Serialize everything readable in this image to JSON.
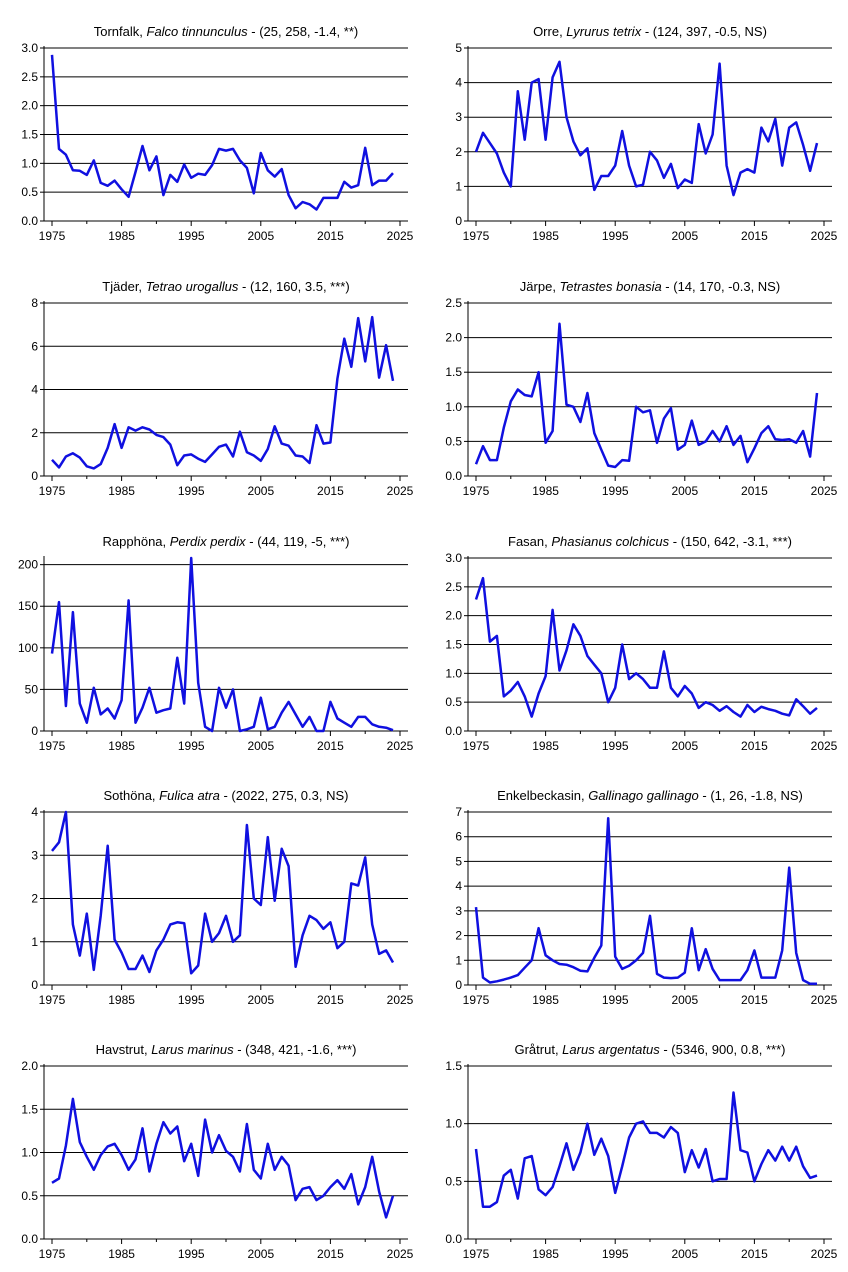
{
  "chart_data": [
    {
      "type": "line",
      "title": {
        "common": "Tornfalk",
        "latin": "Falco tinnunculus",
        "stats": " - (25, 258, -1.4, **)"
      },
      "xlim": [
        1975,
        2025
      ],
      "ylim": [
        0,
        3
      ],
      "yticks": [
        0.0,
        0.5,
        1.0,
        1.5,
        2.0,
        2.5,
        3.0
      ],
      "ydecimals": 1,
      "xticks": [
        1975,
        1985,
        1995,
        2005,
        2015,
        2025
      ],
      "color": "#1010e0",
      "x": [
        1975,
        1976,
        1977,
        1978,
        1979,
        1980,
        1981,
        1982,
        1983,
        1984,
        1985,
        1986,
        1987,
        1988,
        1989,
        1990,
        1991,
        1992,
        1993,
        1994,
        1995,
        1996,
        1997,
        1998,
        1999,
        2000,
        2001,
        2002,
        2003,
        2004,
        2005,
        2006,
        2007,
        2008,
        2009,
        2010,
        2011,
        2012,
        2013,
        2014,
        2015,
        2016,
        2017,
        2018,
        2019,
        2020,
        2021,
        2022,
        2023,
        2024
      ],
      "values": [
        2.88,
        1.25,
        1.15,
        0.88,
        0.87,
        0.8,
        1.05,
        0.66,
        0.61,
        0.7,
        0.55,
        0.42,
        0.85,
        1.3,
        0.88,
        1.12,
        0.45,
        0.8,
        0.68,
        0.98,
        0.75,
        0.82,
        0.8,
        0.97,
        1.25,
        1.22,
        1.25,
        1.05,
        0.92,
        0.48,
        1.18,
        0.88,
        0.77,
        0.9,
        0.45,
        0.22,
        0.33,
        0.29,
        0.2,
        0.4,
        0.4,
        0.4,
        0.68,
        0.58,
        0.62,
        1.27,
        0.62,
        0.7,
        0.7,
        0.83
      ]
    },
    {
      "type": "line",
      "title": {
        "common": "Orre",
        "latin": "Lyrurus tetrix",
        "stats": " - (124, 397, -0.5, NS)"
      },
      "xlim": [
        1975,
        2025
      ],
      "ylim": [
        0,
        5
      ],
      "yticks": [
        0,
        1,
        2,
        3,
        4,
        5
      ],
      "ydecimals": 0,
      "xticks": [
        1975,
        1985,
        1995,
        2005,
        2015,
        2025
      ],
      "color": "#1010e0",
      "x": [
        1975,
        1976,
        1977,
        1978,
        1979,
        1980,
        1981,
        1982,
        1983,
        1984,
        1985,
        1986,
        1987,
        1988,
        1989,
        1990,
        1991,
        1992,
        1993,
        1994,
        1995,
        1996,
        1997,
        1998,
        1999,
        2000,
        2001,
        2002,
        2003,
        2004,
        2005,
        2006,
        2007,
        2008,
        2009,
        2010,
        2011,
        2012,
        2013,
        2014,
        2015,
        2016,
        2017,
        2018,
        2019,
        2020,
        2021,
        2022,
        2023,
        2024
      ],
      "values": [
        2.0,
        2.55,
        2.25,
        1.95,
        1.4,
        1.0,
        3.75,
        2.35,
        4.0,
        4.1,
        2.35,
        4.15,
        4.6,
        3.0,
        2.3,
        1.9,
        2.1,
        0.9,
        1.3,
        1.3,
        1.6,
        2.6,
        1.6,
        1.0,
        1.05,
        2.0,
        1.75,
        1.25,
        1.65,
        0.95,
        1.2,
        1.1,
        2.8,
        1.95,
        2.5,
        4.55,
        1.6,
        0.75,
        1.4,
        1.5,
        1.4,
        2.7,
        2.3,
        2.95,
        1.6,
        2.7,
        2.85,
        2.2,
        1.45,
        2.25
      ]
    },
    {
      "type": "line",
      "title": {
        "common": "Tjäder",
        "latin": "Tetrao urogallus",
        "stats": " - (12, 160, 3.5, ***)"
      },
      "xlim": [
        1975,
        2025
      ],
      "ylim": [
        0,
        8
      ],
      "yticks": [
        0,
        2,
        4,
        6,
        8
      ],
      "ydecimals": 0,
      "xticks": [
        1975,
        1985,
        1995,
        2005,
        2015,
        2025
      ],
      "color": "#1010e0",
      "x": [
        1975,
        1976,
        1977,
        1978,
        1979,
        1980,
        1981,
        1982,
        1983,
        1984,
        1985,
        1986,
        1987,
        1988,
        1989,
        1990,
        1991,
        1992,
        1993,
        1994,
        1995,
        1996,
        1997,
        1998,
        1999,
        2000,
        2001,
        2002,
        2003,
        2004,
        2005,
        2006,
        2007,
        2008,
        2009,
        2010,
        2011,
        2012,
        2013,
        2014,
        2015,
        2016,
        2017,
        2018,
        2019,
        2020,
        2021,
        2022,
        2023,
        2024
      ],
      "values": [
        0.75,
        0.4,
        0.9,
        1.05,
        0.85,
        0.45,
        0.35,
        0.55,
        1.3,
        2.4,
        1.3,
        2.25,
        2.1,
        2.25,
        2.15,
        1.9,
        1.8,
        1.45,
        0.5,
        0.95,
        1.0,
        0.8,
        0.65,
        1.0,
        1.35,
        1.45,
        0.9,
        2.05,
        1.1,
        0.95,
        0.7,
        1.25,
        2.3,
        1.5,
        1.4,
        0.95,
        0.9,
        0.6,
        2.35,
        1.5,
        1.55,
        4.5,
        6.35,
        5.05,
        7.3,
        5.3,
        7.35,
        4.55,
        6.05,
        4.4
      ]
    },
    {
      "type": "line",
      "title": {
        "common": "Järpe",
        "latin": "Tetrastes bonasia",
        "stats": " - (14, 170, -0.3, NS)"
      },
      "xlim": [
        1975,
        2025
      ],
      "ylim": [
        0,
        2.5
      ],
      "yticks": [
        0.0,
        0.5,
        1.0,
        1.5,
        2.0,
        2.5
      ],
      "ydecimals": 1,
      "xticks": [
        1975,
        1985,
        1995,
        2005,
        2015,
        2025
      ],
      "color": "#1010e0",
      "x": [
        1975,
        1976,
        1977,
        1978,
        1979,
        1980,
        1981,
        1982,
        1983,
        1984,
        1985,
        1986,
        1987,
        1988,
        1989,
        1990,
        1991,
        1992,
        1993,
        1994,
        1995,
        1996,
        1997,
        1998,
        1999,
        2000,
        2001,
        2002,
        2003,
        2004,
        2005,
        2006,
        2007,
        2008,
        2009,
        2010,
        2011,
        2012,
        2013,
        2014,
        2015,
        2016,
        2017,
        2018,
        2019,
        2020,
        2021,
        2022,
        2023,
        2024
      ],
      "values": [
        0.17,
        0.43,
        0.23,
        0.23,
        0.7,
        1.08,
        1.25,
        1.17,
        1.15,
        1.5,
        0.48,
        0.65,
        2.2,
        1.03,
        1.0,
        0.78,
        1.2,
        0.62,
        0.38,
        0.15,
        0.13,
        0.23,
        0.22,
        1.0,
        0.92,
        0.95,
        0.48,
        0.83,
        0.98,
        0.38,
        0.45,
        0.8,
        0.45,
        0.5,
        0.65,
        0.5,
        0.72,
        0.45,
        0.58,
        0.2,
        0.4,
        0.62,
        0.72,
        0.53,
        0.52,
        0.53,
        0.48,
        0.65,
        0.28,
        1.2
      ]
    },
    {
      "type": "line",
      "title": {
        "common": "Rapphöna",
        "latin": "Perdix perdix",
        "stats": " - (44, 119, -5, ***)"
      },
      "xlim": [
        1975,
        2025
      ],
      "ylim": [
        0,
        208
      ],
      "yticks": [
        0,
        50,
        100,
        150,
        200
      ],
      "ydecimals": 0,
      "xticks": [
        1975,
        1985,
        1995,
        2005,
        2015,
        2025
      ],
      "color": "#1010e0",
      "x": [
        1975,
        1976,
        1977,
        1978,
        1979,
        1980,
        1981,
        1982,
        1983,
        1984,
        1985,
        1986,
        1987,
        1988,
        1989,
        1990,
        1991,
        1992,
        1993,
        1994,
        1995,
        1996,
        1997,
        1998,
        1999,
        2000,
        2001,
        2002,
        2003,
        2004,
        2005,
        2006,
        2007,
        2008,
        2009,
        2010,
        2011,
        2012,
        2013,
        2014,
        2015,
        2016,
        2017,
        2018,
        2019,
        2020,
        2021,
        2022,
        2023,
        2024
      ],
      "values": [
        93,
        155,
        30,
        143,
        33,
        10,
        52,
        20,
        27,
        15,
        37,
        157,
        10,
        28,
        52,
        22,
        25,
        27,
        88,
        33,
        208,
        58,
        5,
        0,
        52,
        28,
        50,
        0,
        2,
        5,
        40,
        2,
        5,
        22,
        35,
        20,
        5,
        17,
        0,
        0,
        35,
        15,
        10,
        5,
        17,
        17,
        8,
        5,
        4,
        1
      ]
    },
    {
      "type": "line",
      "title": {
        "common": "Fasan",
        "latin": "Phasianus colchicus",
        "stats": " - (150, 642, -3.1, ***)"
      },
      "xlim": [
        1975,
        2025
      ],
      "ylim": [
        0,
        3
      ],
      "yticks": [
        0.0,
        0.5,
        1.0,
        1.5,
        2.0,
        2.5,
        3.0
      ],
      "ydecimals": 1,
      "xticks": [
        1975,
        1985,
        1995,
        2005,
        2015,
        2025
      ],
      "color": "#1010e0",
      "x": [
        1975,
        1976,
        1977,
        1978,
        1979,
        1980,
        1981,
        1982,
        1983,
        1984,
        1985,
        1986,
        1987,
        1988,
        1989,
        1990,
        1991,
        1992,
        1993,
        1994,
        1995,
        1996,
        1997,
        1998,
        1999,
        2000,
        2001,
        2002,
        2003,
        2004,
        2005,
        2006,
        2007,
        2008,
        2009,
        2010,
        2011,
        2012,
        2013,
        2014,
        2015,
        2016,
        2017,
        2018,
        2019,
        2020,
        2021,
        2022,
        2023,
        2024
      ],
      "values": [
        2.28,
        2.65,
        1.55,
        1.65,
        0.6,
        0.7,
        0.85,
        0.6,
        0.25,
        0.65,
        0.95,
        2.1,
        1.05,
        1.4,
        1.85,
        1.65,
        1.3,
        1.15,
        1.0,
        0.5,
        0.75,
        1.5,
        0.9,
        1.0,
        0.9,
        0.75,
        0.75,
        1.38,
        0.75,
        0.6,
        0.78,
        0.65,
        0.4,
        0.5,
        0.45,
        0.35,
        0.43,
        0.33,
        0.25,
        0.45,
        0.33,
        0.42,
        0.38,
        0.35,
        0.3,
        0.27,
        0.55,
        0.43,
        0.3,
        0.4
      ]
    },
    {
      "type": "line",
      "title": {
        "common": "Sothöna",
        "latin": "Fulica atra",
        "stats": " - (2022, 275, 0.3, NS)"
      },
      "xlim": [
        1975,
        2025
      ],
      "ylim": [
        0,
        4
      ],
      "yticks": [
        0,
        1,
        2,
        3,
        4
      ],
      "ydecimals": 0,
      "xticks": [
        1975,
        1985,
        1995,
        2005,
        2015,
        2025
      ],
      "color": "#1010e0",
      "x": [
        1975,
        1976,
        1977,
        1978,
        1979,
        1980,
        1981,
        1982,
        1983,
        1984,
        1985,
        1986,
        1987,
        1988,
        1989,
        1990,
        1991,
        1992,
        1993,
        1994,
        1995,
        1996,
        1997,
        1998,
        1999,
        2000,
        2001,
        2002,
        2003,
        2004,
        2005,
        2006,
        2007,
        2008,
        2009,
        2010,
        2011,
        2012,
        2013,
        2014,
        2015,
        2016,
        2017,
        2018,
        2019,
        2020,
        2021,
        2022,
        2023,
        2024
      ],
      "values": [
        3.1,
        3.3,
        4.0,
        1.4,
        0.68,
        1.65,
        0.35,
        1.6,
        3.22,
        1.05,
        0.75,
        0.37,
        0.37,
        0.68,
        0.3,
        0.8,
        1.05,
        1.4,
        1.45,
        1.43,
        0.27,
        0.45,
        1.65,
        1.0,
        1.2,
        1.6,
        1.0,
        1.15,
        3.7,
        2.0,
        1.85,
        3.42,
        1.95,
        3.15,
        2.75,
        0.42,
        1.15,
        1.6,
        1.5,
        1.3,
        1.45,
        0.85,
        1.0,
        2.35,
        2.3,
        2.95,
        1.4,
        0.72,
        0.8,
        0.52
      ]
    },
    {
      "type": "line",
      "title": {
        "common": "Enkelbeckasin",
        "latin": "Gallinago gallinago",
        "stats": " - (1, 26, -1.8, NS)"
      },
      "xlim": [
        1975,
        2025
      ],
      "ylim": [
        0,
        7
      ],
      "yticks": [
        0,
        1,
        2,
        3,
        4,
        5,
        6,
        7
      ],
      "ydecimals": 0,
      "xticks": [
        1975,
        1985,
        1995,
        2005,
        2015,
        2025
      ],
      "color": "#1010e0",
      "x": [
        1975,
        1976,
        1977,
        1978,
        1979,
        1980,
        1981,
        1982,
        1983,
        1984,
        1985,
        1986,
        1987,
        1988,
        1989,
        1990,
        1991,
        1992,
        1993,
        1994,
        1995,
        1996,
        1997,
        1998,
        1999,
        2000,
        2001,
        2002,
        2003,
        2004,
        2005,
        2006,
        2007,
        2008,
        2009,
        2010,
        2011,
        2012,
        2013,
        2014,
        2015,
        2016,
        2017,
        2018,
        2019,
        2020,
        2021,
        2022,
        2023,
        2024
      ],
      "values": [
        3.15,
        0.3,
        0.1,
        0.15,
        0.22,
        0.3,
        0.4,
        0.7,
        1.0,
        2.3,
        1.2,
        1.0,
        0.85,
        0.82,
        0.72,
        0.58,
        0.55,
        1.1,
        1.6,
        6.75,
        1.15,
        0.65,
        0.78,
        1.0,
        1.3,
        2.8,
        0.45,
        0.3,
        0.28,
        0.3,
        0.5,
        2.3,
        0.6,
        1.45,
        0.65,
        0.2,
        0.2,
        0.2,
        0.2,
        0.6,
        1.4,
        0.3,
        0.3,
        0.3,
        1.4,
        4.75,
        1.3,
        0.2,
        0.05,
        0.05
      ]
    },
    {
      "type": "line",
      "title": {
        "common": "Havstrut",
        "latin": "Larus marinus",
        "stats": " - (348, 421, -1.6, ***)"
      },
      "xlim": [
        1975,
        2025
      ],
      "ylim": [
        0,
        2
      ],
      "yticks": [
        0.0,
        0.5,
        1.0,
        1.5,
        2.0
      ],
      "ydecimals": 1,
      "xticks": [
        1975,
        1985,
        1995,
        2005,
        2015,
        2025
      ],
      "color": "#1010e0",
      "x": [
        1975,
        1976,
        1977,
        1978,
        1979,
        1980,
        1981,
        1982,
        1983,
        1984,
        1985,
        1986,
        1987,
        1988,
        1989,
        1990,
        1991,
        1992,
        1993,
        1994,
        1995,
        1996,
        1997,
        1998,
        1999,
        2000,
        2001,
        2002,
        2003,
        2004,
        2005,
        2006,
        2007,
        2008,
        2009,
        2010,
        2011,
        2012,
        2013,
        2014,
        2015,
        2016,
        2017,
        2018,
        2019,
        2020,
        2021,
        2022,
        2023,
        2024
      ],
      "values": [
        0.65,
        0.7,
        1.08,
        1.62,
        1.12,
        0.95,
        0.8,
        0.97,
        1.07,
        1.1,
        0.97,
        0.8,
        0.92,
        1.28,
        0.78,
        1.1,
        1.35,
        1.22,
        1.3,
        0.9,
        1.1,
        0.73,
        1.38,
        1.0,
        1.2,
        1.02,
        0.95,
        0.78,
        1.33,
        0.8,
        0.7,
        1.1,
        0.8,
        0.95,
        0.85,
        0.45,
        0.58,
        0.6,
        0.45,
        0.5,
        0.6,
        0.68,
        0.58,
        0.75,
        0.4,
        0.6,
        0.95,
        0.55,
        0.25,
        0.5
      ]
    },
    {
      "type": "line",
      "title": {
        "common": "Gråtrut",
        "latin": "Larus argentatus",
        "stats": " - (5346, 900, 0.8, ***)"
      },
      "xlim": [
        1975,
        2025
      ],
      "ylim": [
        0,
        1.5
      ],
      "yticks": [
        0.0,
        0.5,
        1.0,
        1.5
      ],
      "ydecimals": 1,
      "xticks": [
        1975,
        1985,
        1995,
        2005,
        2015,
        2025
      ],
      "color": "#1010e0",
      "x": [
        1975,
        1976,
        1977,
        1978,
        1979,
        1980,
        1981,
        1982,
        1983,
        1984,
        1985,
        1986,
        1987,
        1988,
        1989,
        1990,
        1991,
        1992,
        1993,
        1994,
        1995,
        1996,
        1997,
        1998,
        1999,
        2000,
        2001,
        2002,
        2003,
        2004,
        2005,
        2006,
        2007,
        2008,
        2009,
        2010,
        2011,
        2012,
        2013,
        2014,
        2015,
        2016,
        2017,
        2018,
        2019,
        2020,
        2021,
        2022,
        2023,
        2024
      ],
      "values": [
        0.78,
        0.28,
        0.28,
        0.32,
        0.55,
        0.6,
        0.35,
        0.7,
        0.72,
        0.43,
        0.38,
        0.45,
        0.63,
        0.83,
        0.6,
        0.75,
        1.0,
        0.73,
        0.87,
        0.72,
        0.4,
        0.63,
        0.88,
        1.0,
        1.02,
        0.92,
        0.92,
        0.88,
        0.97,
        0.92,
        0.58,
        0.77,
        0.62,
        0.78,
        0.5,
        0.52,
        0.52,
        1.27,
        0.77,
        0.75,
        0.5,
        0.65,
        0.77,
        0.68,
        0.8,
        0.68,
        0.8,
        0.63,
        0.53,
        0.55
      ]
    }
  ]
}
